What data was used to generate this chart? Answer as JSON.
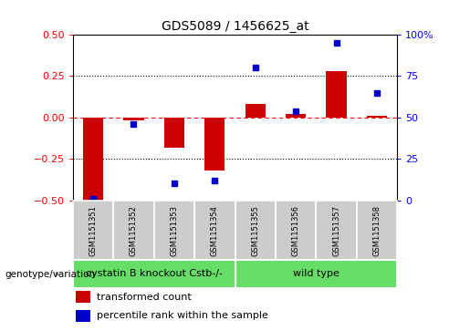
{
  "title": "GDS5089 / 1456625_at",
  "samples": [
    "GSM1151351",
    "GSM1151352",
    "GSM1151353",
    "GSM1151354",
    "GSM1151355",
    "GSM1151356",
    "GSM1151357",
    "GSM1151358"
  ],
  "transformed_count": [
    -0.5,
    -0.02,
    -0.18,
    -0.32,
    0.08,
    0.02,
    0.28,
    0.01
  ],
  "percentile_rank": [
    1,
    46,
    10,
    12,
    80,
    54,
    95,
    65
  ],
  "bar_color": "#cc0000",
  "dot_color": "#0000cc",
  "ylim_left": [
    -0.5,
    0.5
  ],
  "ylim_right": [
    0,
    100
  ],
  "yticks_left": [
    -0.5,
    -0.25,
    0,
    0.25,
    0.5
  ],
  "yticks_right": [
    0,
    25,
    50,
    75,
    100
  ],
  "right_tick_labels": [
    "0",
    "25",
    "50",
    "75",
    "100%"
  ],
  "genotype_groups": [
    {
      "label": "cystatin B knockout Cstb-/-",
      "start": 0,
      "end": 4,
      "color": "#66dd66"
    },
    {
      "label": "wild type",
      "start": 4,
      "end": 8,
      "color": "#66dd66"
    }
  ],
  "legend_items": [
    {
      "color": "#cc0000",
      "label": "transformed count"
    },
    {
      "color": "#0000cc",
      "label": "percentile rank within the sample"
    }
  ],
  "genotype_label": "genotype/variation",
  "plot_bg_color": "#ffffff",
  "title_fontsize": 10,
  "axis_fontsize": 8,
  "sample_fontsize": 6,
  "legend_fontsize": 8,
  "geno_fontsize": 8,
  "bar_width": 0.5,
  "dot_size": 5
}
